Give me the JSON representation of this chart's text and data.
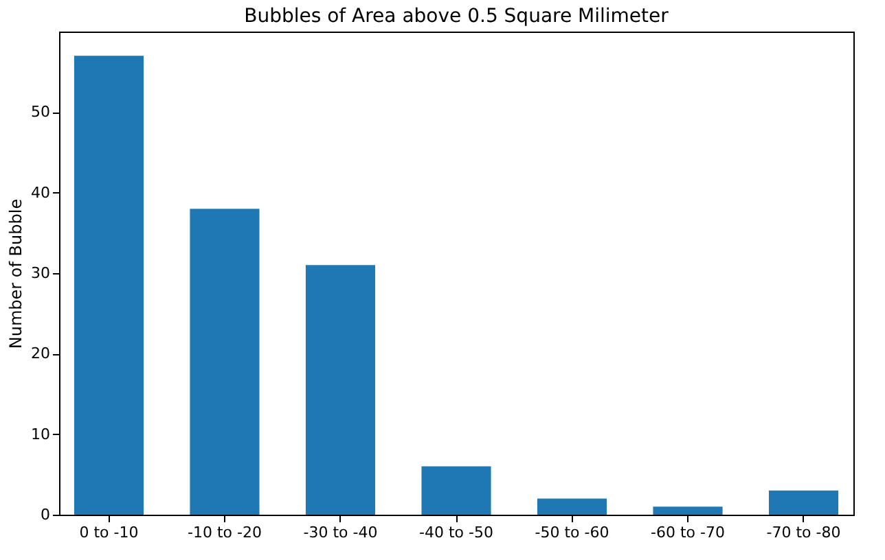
{
  "chart_data": {
    "type": "bar",
    "title": "Bubbles of Area above 0.5 Square Milimeter",
    "ylabel": "Number of Bubble",
    "categories": [
      "0 to -10",
      "-10 to -20",
      "-30 to -40",
      "-40 to -50",
      "-50 to -60",
      "-60 to -70",
      "-70 to -80"
    ],
    "values": [
      57,
      38,
      31,
      6,
      2,
      1,
      3
    ],
    "color": "#1f77b4",
    "ylim": [
      0,
      60
    ],
    "yticks": [
      0,
      10,
      20,
      30,
      40,
      50
    ],
    "grid": false
  }
}
